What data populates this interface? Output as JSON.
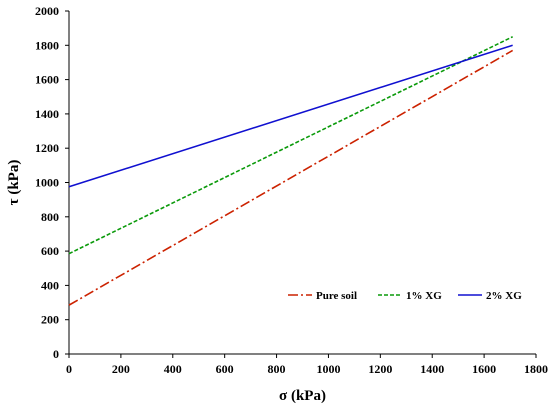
{
  "chart_data": {
    "type": "line",
    "title": "",
    "xlabel": "σ (kPa)",
    "ylabel": "τ (kPa)",
    "xlim": [
      0,
      1800
    ],
    "ylim": [
      0,
      2000
    ],
    "xticks": [
      0,
      200,
      400,
      600,
      800,
      1000,
      1200,
      1400,
      1600,
      1800
    ],
    "yticks": [
      0,
      200,
      400,
      600,
      800,
      1000,
      1200,
      1400,
      1600,
      1800,
      2000
    ],
    "grid": false,
    "legend_position": "bottom-right",
    "series": [
      {
        "name": "Pure soil",
        "x": [
          0,
          1710
        ],
        "y": [
          285,
          1770
        ],
        "color": "#cc2200",
        "style": "dashdot"
      },
      {
        "name": "1% XG",
        "x": [
          0,
          1710
        ],
        "y": [
          585,
          1850
        ],
        "color": "#0a9a0a",
        "style": "dashed"
      },
      {
        "name": "2% XG",
        "x": [
          0,
          1710
        ],
        "y": [
          975,
          1800
        ],
        "color": "#1010d0",
        "style": "solid"
      }
    ]
  }
}
